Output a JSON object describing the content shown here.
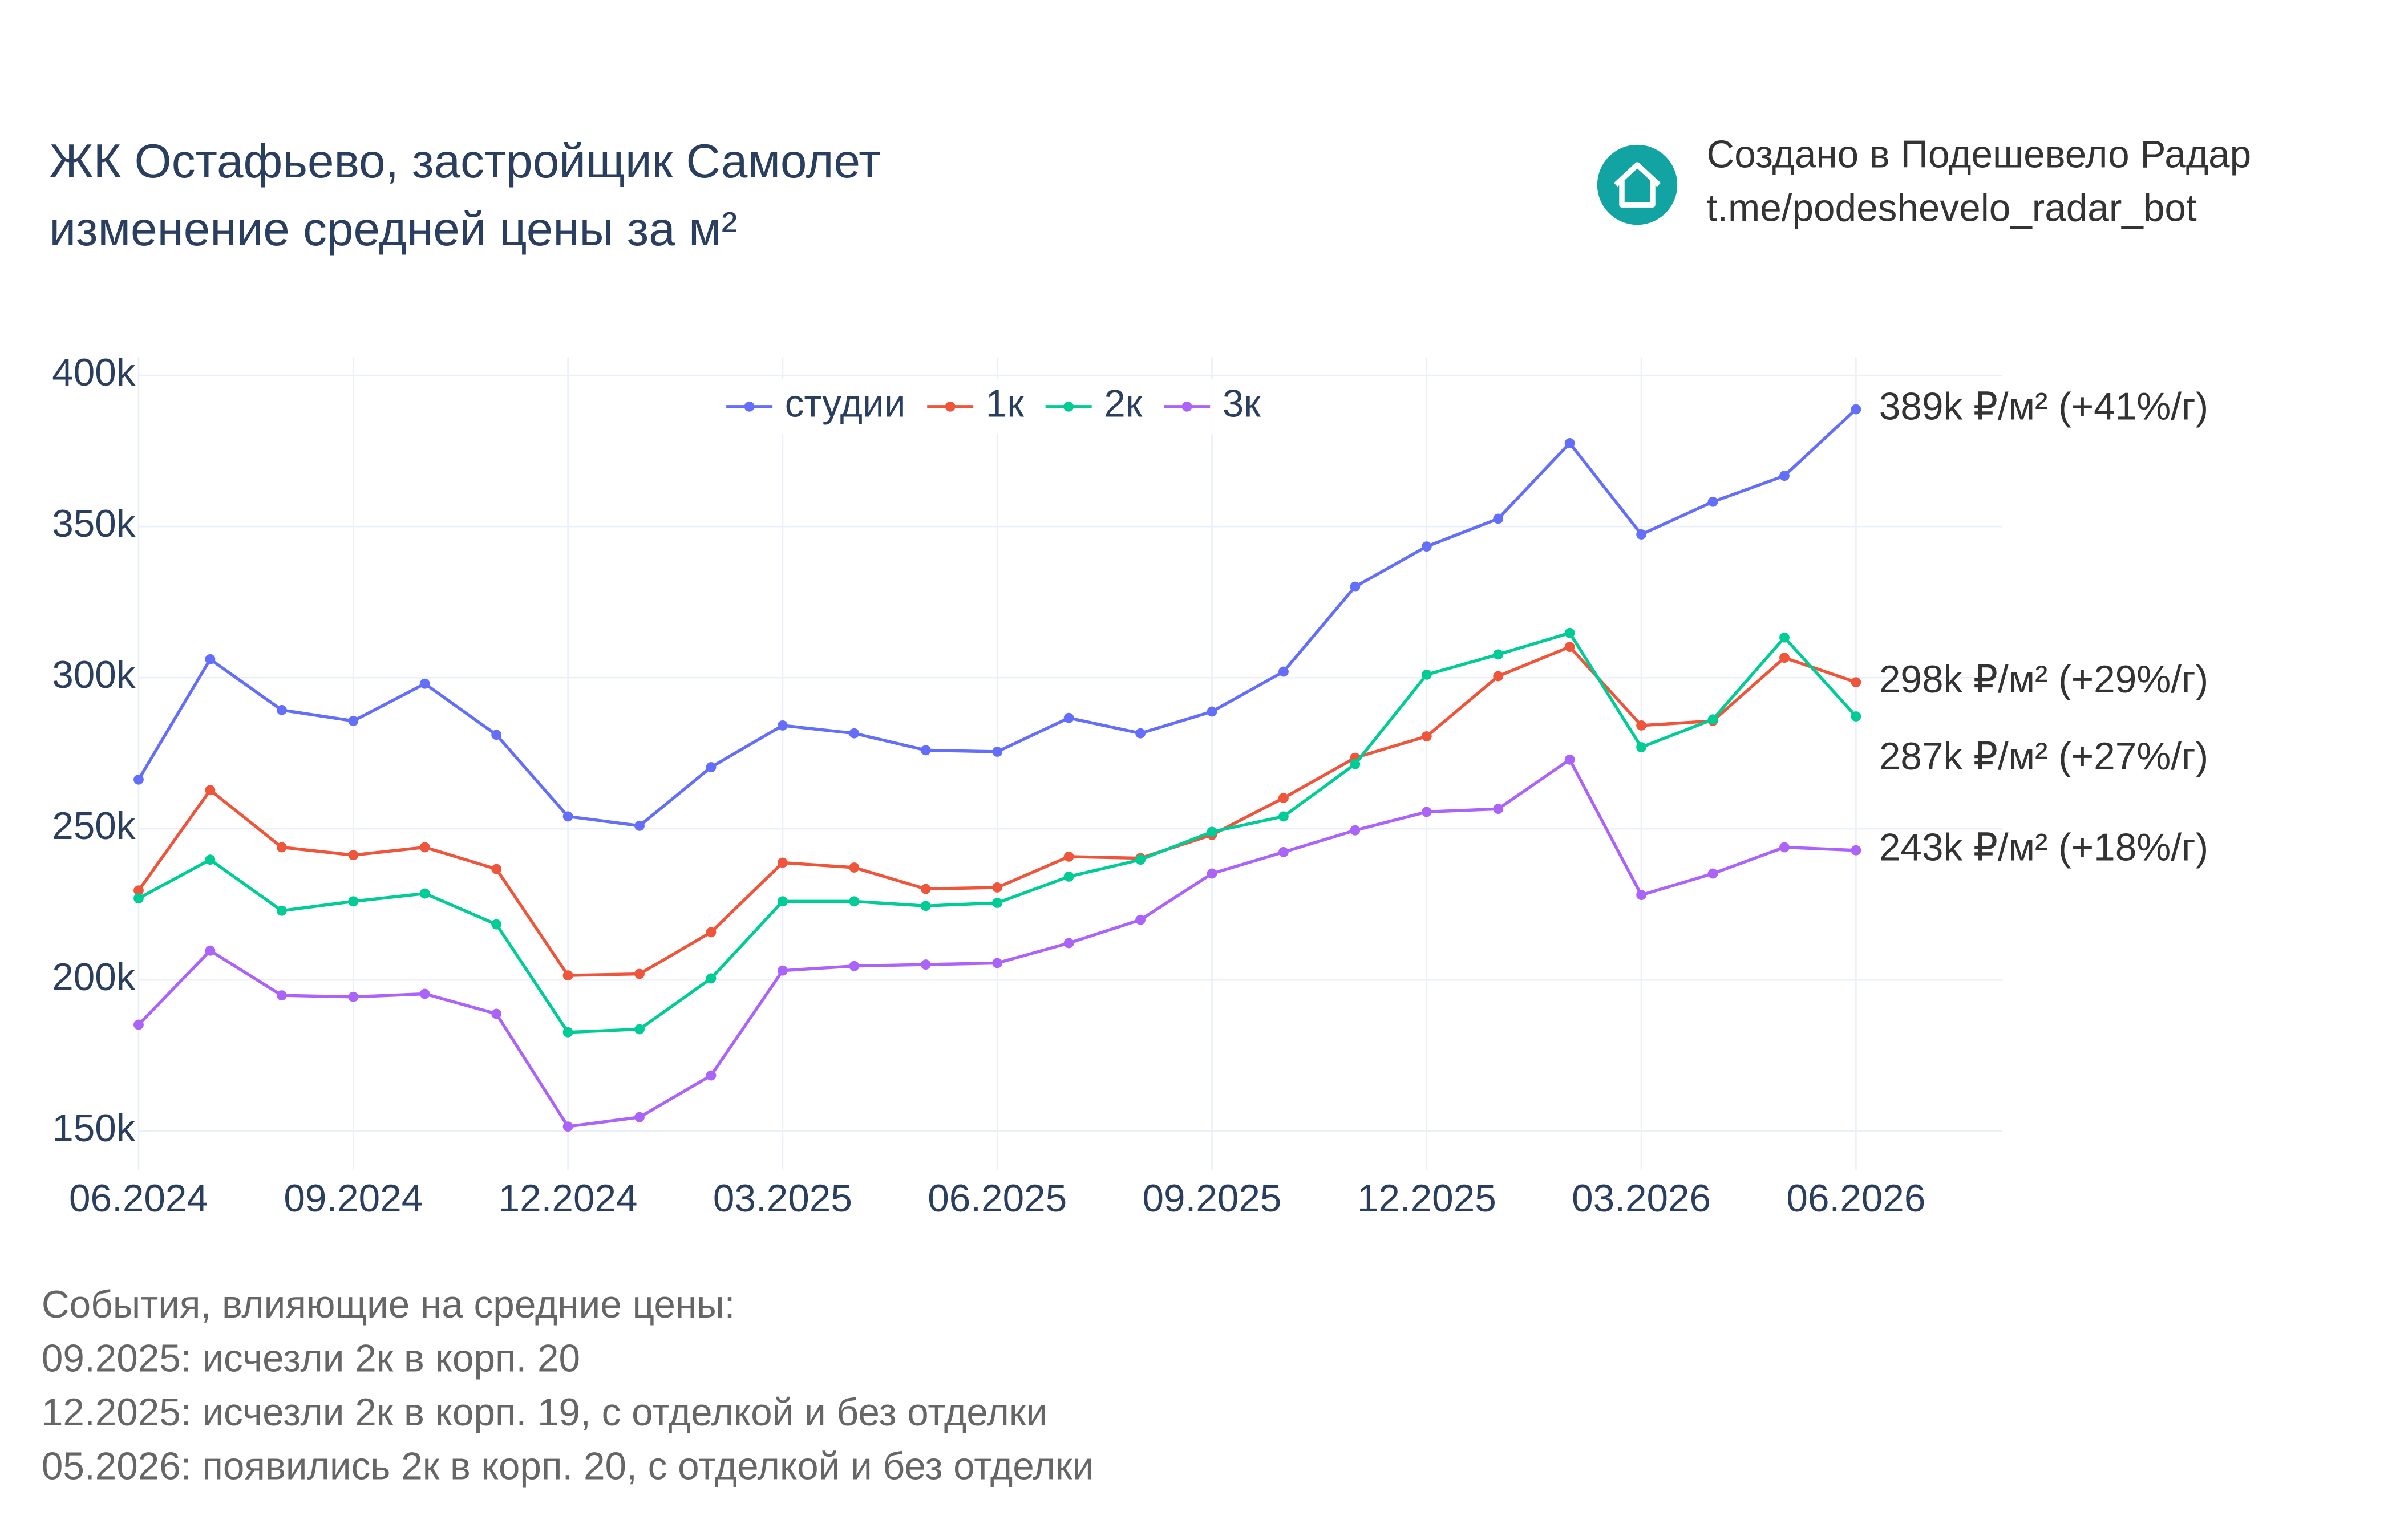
{
  "chart_data": {
    "type": "line",
    "title": "ЖК Остафьево, застройщик Самолет",
    "subtitle": "изменение средней цены за м²",
    "x": [
      "06.2024",
      "07.2024",
      "08.2024",
      "09.2024",
      "10.2024",
      "11.2024",
      "12.2024",
      "01.2025",
      "02.2025",
      "03.2025",
      "04.2025",
      "05.2025",
      "06.2025",
      "07.2025",
      "08.2025",
      "09.2025",
      "10.2025",
      "11.2025",
      "12.2025",
      "01.2026",
      "02.2026",
      "03.2026",
      "04.2026",
      "05.2026",
      "06.2026"
    ],
    "xticks": [
      "06.2024",
      "09.2024",
      "12.2024",
      "03.2025",
      "06.2025",
      "09.2025",
      "12.2025",
      "03.2026",
      "06.2026"
    ],
    "ylim": [
      137000,
      406000
    ],
    "yticks": [
      {
        "value": 150000,
        "label": "150k"
      },
      {
        "value": 200000,
        "label": "200k"
      },
      {
        "value": 250000,
        "label": "250k"
      },
      {
        "value": 300000,
        "label": "300k"
      },
      {
        "value": 350000,
        "label": "350k"
      },
      {
        "value": 400000,
        "label": "400k"
      }
    ],
    "grid": true,
    "legend": "top",
    "series": [
      {
        "name": "студии",
        "color": "#636efa",
        "end_label": "389k ₽/м² (+41%/г)",
        "values": [
          266300,
          306100,
          289300,
          285700,
          298000,
          281100,
          254100,
          251000,
          270400,
          284200,
          281600,
          276000,
          275500,
          286700,
          281600,
          288800,
          302000,
          330100,
          343400,
          352600,
          377600,
          347400,
          358200,
          366800,
          388800
        ]
      },
      {
        "name": "1к",
        "color": "#ef553b",
        "end_label": "298k ₽/м² (+29%/г)",
        "values": [
          229600,
          262800,
          243900,
          241300,
          243900,
          236700,
          201500,
          202000,
          215800,
          238800,
          237200,
          230100,
          230600,
          240800,
          240300,
          248000,
          260200,
          273500,
          280600,
          300500,
          310200,
          284200,
          285700,
          306600,
          298500
        ]
      },
      {
        "name": "2к",
        "color": "#00cc96",
        "end_label": "287k ₽/м² (+27%/г)",
        "values": [
          227000,
          239800,
          222900,
          226000,
          228600,
          218400,
          182700,
          183700,
          200500,
          226000,
          226000,
          224500,
          225500,
          234200,
          239800,
          249000,
          254100,
          271400,
          301000,
          307700,
          314800,
          277000,
          286200,
          313300,
          287200
        ]
      },
      {
        "name": "3к",
        "color": "#ab63fa",
        "end_label": "243k ₽/м² (+18%/г)",
        "values": [
          185200,
          209700,
          194900,
          194400,
          195400,
          188800,
          151500,
          154600,
          168400,
          203100,
          204600,
          205100,
          205600,
          212200,
          219900,
          235200,
          242300,
          249500,
          255600,
          256600,
          272900,
          228100,
          235200,
          243900,
          242900
        ]
      }
    ]
  },
  "credit": [
    "Создано в Подешевело Радар",
    "t.me/podeshevelo_radar_bot"
  ],
  "notes": {
    "heading": "События, влияющие на средние цены:",
    "items": [
      "09.2025: исчезли 2к в корп. 20",
      "12.2025: исчезли 2к в корп. 19, с отделкой и без отделки",
      "05.2026: появились 2к в корп. 20, с отделкой и без отделки"
    ]
  }
}
